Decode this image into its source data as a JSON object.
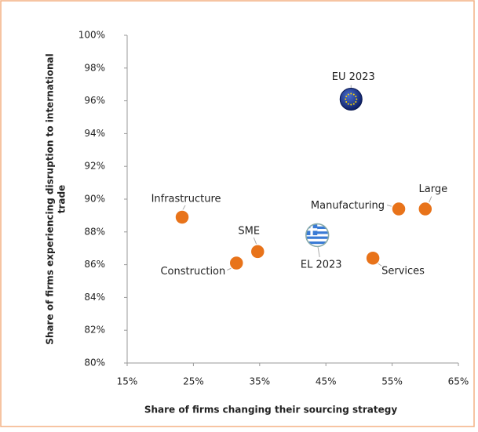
{
  "chart_data": {
    "type": "scatter",
    "xlabel": "Share of firms changing their sourcing strategy",
    "ylabel": [
      "Share of firms experiencing disruption to international",
      "trade"
    ],
    "labels": [
      "EU 2023",
      "Infrastructure",
      "Manufacturing",
      "Large",
      "EL 2023",
      "SME",
      "Construction",
      "Services"
    ],
    "x": [
      48.8,
      23.3,
      56,
      60,
      43.7,
      34.7,
      31.5,
      52.1
    ],
    "values": [
      96.1,
      88.9,
      89.4,
      89.4,
      87.8,
      86.8,
      86.1,
      86.4
    ],
    "colors": [
      "#1f3f99",
      "#e8731a",
      "#e8731a",
      "#e8731a",
      "#3a7bd5",
      "#e8731a",
      "#e8731a",
      "#e8731a"
    ],
    "xlim": [
      15,
      65
    ],
    "xticks": [
      {
        "value": 15,
        "label": "15%"
      },
      {
        "value": 25,
        "label": "25%"
      },
      {
        "value": 35,
        "label": "35%"
      },
      {
        "value": 45,
        "label": "45%"
      },
      {
        "value": 55,
        "label": "55%"
      },
      {
        "value": 65,
        "label": "65%"
      }
    ],
    "ylim": [
      80,
      100
    ],
    "yticks": [
      {
        "value": 80,
        "label": "80%"
      },
      {
        "value": 82,
        "label": "82%"
      },
      {
        "value": 84,
        "label": "84%"
      },
      {
        "value": 86,
        "label": "86%"
      },
      {
        "value": 88,
        "label": "88%"
      },
      {
        "value": 90,
        "label": "90%"
      },
      {
        "value": 92,
        "label": "92%"
      },
      {
        "value": 94,
        "label": "94%"
      },
      {
        "value": 96,
        "label": "96%"
      },
      {
        "value": 98,
        "label": "98%"
      },
      {
        "value": 100,
        "label": "100%"
      }
    ],
    "grid": false
  }
}
